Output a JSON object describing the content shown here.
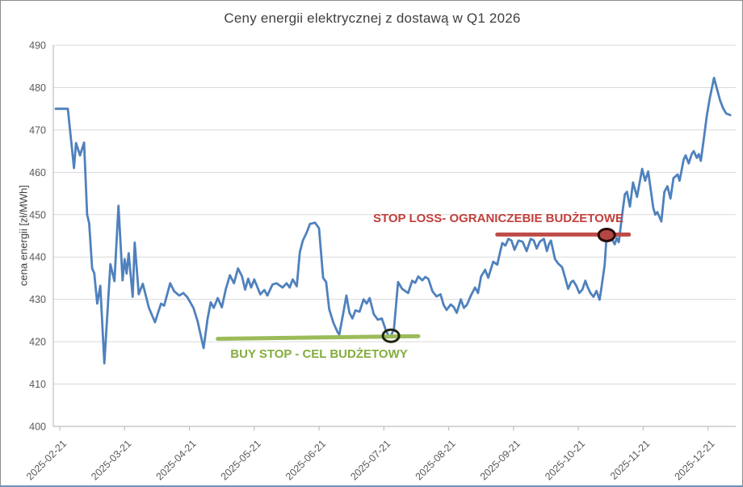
{
  "chart_data": {
    "type": "line",
    "title": "Ceny energii elektrycznej z dostawą w Q1 2026",
    "ylabel": "cena energii [zł/MWh]",
    "xlabel": "",
    "ylim": [
      400,
      490
    ],
    "y_ticks": [
      400,
      410,
      420,
      430,
      440,
      450,
      460,
      470,
      480,
      490
    ],
    "grid": "horizontal",
    "legend": "none",
    "x_tick_labels": [
      "2025-02-21",
      "2025-03-21",
      "2025-04-21",
      "2025-05-21",
      "2025-06-21",
      "2025-07-21",
      "2025-08-21",
      "2025-09-21",
      "2025-10-21",
      "2025-11-21",
      "2025-12-21"
    ],
    "x_tick_index": [
      2,
      34,
      66,
      98,
      130,
      162,
      194,
      226,
      258,
      290,
      322
    ],
    "series": [
      {
        "name": "cena energii",
        "color": "#4f81bd",
        "points": [
          [
            0,
            475
          ],
          [
            6,
            475
          ],
          [
            9,
            461
          ],
          [
            10,
            466.9
          ],
          [
            12,
            464
          ],
          [
            14,
            467
          ],
          [
            15.5,
            450
          ],
          [
            16.5,
            448
          ],
          [
            18,
            437.3
          ],
          [
            19,
            436.2
          ],
          [
            20.5,
            429
          ],
          [
            22,
            433.2
          ],
          [
            24,
            414.9
          ],
          [
            27,
            438.3
          ],
          [
            29,
            434.3
          ],
          [
            31,
            452.1
          ],
          [
            33,
            434.5
          ],
          [
            34,
            439.5
          ],
          [
            35,
            436.1
          ],
          [
            36,
            440.9
          ],
          [
            38,
            430.6
          ],
          [
            39,
            443.4
          ],
          [
            41,
            431.2
          ],
          [
            43,
            433.7
          ],
          [
            46,
            428
          ],
          [
            49,
            424.6
          ],
          [
            52,
            429
          ],
          [
            53.5,
            428.5
          ],
          [
            56.5,
            433.8
          ],
          [
            58.5,
            431.9
          ],
          [
            61,
            430.9
          ],
          [
            63,
            431.5
          ],
          [
            65,
            430.5
          ],
          [
            68,
            428
          ],
          [
            70,
            424.9
          ],
          [
            73,
            418.5
          ],
          [
            75,
            425.5
          ],
          [
            76.5,
            429.3
          ],
          [
            78,
            428
          ],
          [
            80,
            430.3
          ],
          [
            82,
            428.1
          ],
          [
            84,
            432.5
          ],
          [
            86,
            435.7
          ],
          [
            88,
            433.8
          ],
          [
            90,
            437.3
          ],
          [
            92,
            435.4
          ],
          [
            93.5,
            432.3
          ],
          [
            95,
            434.9
          ],
          [
            96.5,
            432.8
          ],
          [
            98,
            434.7
          ],
          [
            101,
            431.2
          ],
          [
            103,
            432.2
          ],
          [
            104.5,
            430.9
          ],
          [
            107,
            433.5
          ],
          [
            109,
            433.8
          ],
          [
            112,
            432.8
          ],
          [
            114,
            433.8
          ],
          [
            115.5,
            432.8
          ],
          [
            117,
            434.7
          ],
          [
            119,
            433.1
          ],
          [
            120.5,
            441.1
          ],
          [
            122,
            443.9
          ],
          [
            124,
            445.9
          ],
          [
            125.5,
            447.8
          ],
          [
            128,
            448.1
          ],
          [
            130,
            446.8
          ],
          [
            132,
            435.1
          ],
          [
            133.5,
            434.1
          ],
          [
            135,
            427.7
          ],
          [
            137,
            424.6
          ],
          [
            139,
            422.4
          ],
          [
            140,
            421.7
          ],
          [
            142,
            426.8
          ],
          [
            143.5,
            430.9
          ],
          [
            145,
            426.8
          ],
          [
            146.5,
            425.5
          ],
          [
            148,
            427.4
          ],
          [
            150,
            427.1
          ],
          [
            152,
            430
          ],
          [
            153.5,
            429
          ],
          [
            155,
            430.3
          ],
          [
            157,
            426.5
          ],
          [
            159,
            425.2
          ],
          [
            161,
            425.5
          ],
          [
            163,
            422.7
          ],
          [
            164.5,
            421.2
          ],
          [
            165.5,
            421.4
          ],
          [
            167,
            423
          ],
          [
            169,
            434.1
          ],
          [
            171,
            432.5
          ],
          [
            174,
            431.5
          ],
          [
            176,
            434.4
          ],
          [
            177.5,
            433.9
          ],
          [
            179,
            435.4
          ],
          [
            181,
            434.5
          ],
          [
            182.5,
            435.3
          ],
          [
            184,
            434.8
          ],
          [
            186,
            431.9
          ],
          [
            188,
            430.7
          ],
          [
            190,
            431.2
          ],
          [
            191.5,
            428.7
          ],
          [
            193,
            427.5
          ],
          [
            195,
            428.8
          ],
          [
            196.5,
            428.2
          ],
          [
            198,
            426.8
          ],
          [
            200,
            430
          ],
          [
            201.5,
            428
          ],
          [
            203,
            428.7
          ],
          [
            205,
            430.9
          ],
          [
            207,
            432.8
          ],
          [
            208.5,
            431.5
          ],
          [
            210,
            435.4
          ],
          [
            212,
            437
          ],
          [
            213.5,
            435.1
          ],
          [
            216,
            438.9
          ],
          [
            218,
            438.2
          ],
          [
            219.5,
            441.4
          ],
          [
            220.5,
            443.3
          ],
          [
            222,
            442.7
          ],
          [
            223.5,
            444.3
          ],
          [
            225,
            443.9
          ],
          [
            226.5,
            441.7
          ],
          [
            228.5,
            443.9
          ],
          [
            230.5,
            443.6
          ],
          [
            232.5,
            441.4
          ],
          [
            234.5,
            444.3
          ],
          [
            236,
            443.9
          ],
          [
            237.5,
            442
          ],
          [
            239,
            443.6
          ],
          [
            241,
            444.3
          ],
          [
            242.5,
            441.4
          ],
          [
            243.5,
            443
          ],
          [
            244.5,
            443.9
          ],
          [
            246.5,
            439.5
          ],
          [
            248,
            438.5
          ],
          [
            250,
            437.6
          ],
          [
            251.5,
            435.1
          ],
          [
            253,
            432.5
          ],
          [
            254.5,
            434.1
          ],
          [
            255.5,
            434.4
          ],
          [
            257,
            433.2
          ],
          [
            258.5,
            431.5
          ],
          [
            260,
            432.3
          ],
          [
            261.5,
            434.4
          ],
          [
            262.5,
            433
          ],
          [
            264,
            431.5
          ],
          [
            265.5,
            430.6
          ],
          [
            267,
            432
          ],
          [
            268.5,
            429.9
          ],
          [
            269.5,
            433
          ],
          [
            271,
            438.1
          ],
          [
            272,
            445.2
          ],
          [
            273.5,
            444.5
          ],
          [
            275,
            443.9
          ],
          [
            276,
            443
          ],
          [
            277,
            444.5
          ],
          [
            278,
            443.5
          ],
          [
            279.5,
            449.4
          ],
          [
            281,
            454.8
          ],
          [
            282,
            455.4
          ],
          [
            283.5,
            451.9
          ],
          [
            285,
            457.6
          ],
          [
            287,
            454.2
          ],
          [
            289.5,
            460.8
          ],
          [
            291,
            458
          ],
          [
            292.5,
            460.2
          ],
          [
            295,
            451.6
          ],
          [
            296,
            450
          ],
          [
            297,
            450.6
          ],
          [
            299,
            448.4
          ],
          [
            300.5,
            455.4
          ],
          [
            302,
            456.7
          ],
          [
            303.5,
            453.8
          ],
          [
            305,
            458.6
          ],
          [
            307,
            459.5
          ],
          [
            308,
            458
          ],
          [
            310,
            463
          ],
          [
            311,
            464
          ],
          [
            312.5,
            462.1
          ],
          [
            314,
            464.3
          ],
          [
            315,
            465
          ],
          [
            316.5,
            463.4
          ],
          [
            317.5,
            464.3
          ],
          [
            318.5,
            462.7
          ],
          [
            320,
            468.1
          ],
          [
            321.5,
            473.5
          ],
          [
            323,
            477.7
          ],
          [
            325,
            482.3
          ],
          [
            326.5,
            479.6
          ],
          [
            328,
            477
          ],
          [
            329.5,
            475.1
          ],
          [
            331,
            473.9
          ],
          [
            333,
            473.5
          ]
        ]
      }
    ],
    "annotations": {
      "buy_stop": {
        "label": "BUY STOP - CEL BUDŻETOWY",
        "line_color": "#9bbb59",
        "text_color": "#84ad3d",
        "line": {
          "x_from": 80,
          "x_to": 179,
          "y_from": 420.7,
          "y_to": 421.3
        },
        "marker": {
          "x": 165.5,
          "y": 421.4,
          "ring_color": "#20260f",
          "fill_color": "#9bbb59"
        }
      },
      "stop_loss": {
        "label": "STOP LOSS- OGRANICZEBIE BUDŻETOWE",
        "line_color": "#be4b48",
        "text_color": "#c1403c",
        "line": {
          "x_from": 218,
          "x_to": 283,
          "y_from": 445.3,
          "y_to": 445.3
        },
        "marker": {
          "x": 272,
          "y": 445.2,
          "ring_color": "#260b09",
          "fill_color": "#b24743"
        }
      }
    },
    "style": {
      "gridline_color": "#d9d9d9",
      "axis_color": "#bfbfbf",
      "tick_label_color": "#595959",
      "title_color": "#3f3f3f",
      "series_width": 2.8,
      "annotation_width": 5
    }
  }
}
